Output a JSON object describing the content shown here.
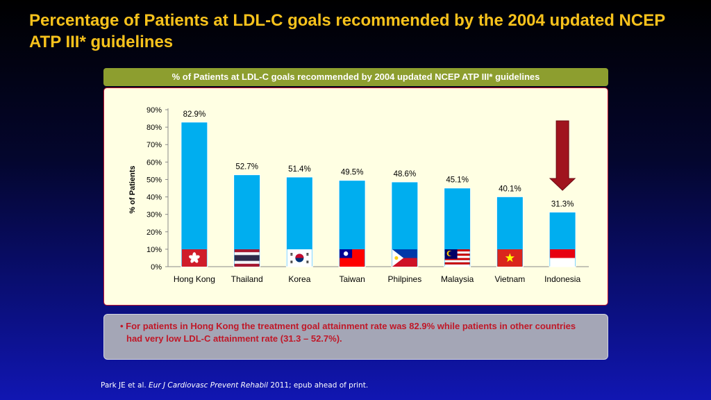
{
  "slide": {
    "title": "Percentage of Patients at LDL-C goals recommended by the 2004 updated NCEP ATP III* guidelines"
  },
  "chart_data": {
    "type": "bar",
    "title": "% of Patients at LDL-C goals recommended by 2004 updated NCEP ATP III* guidelines",
    "ylabel": "% of Patients",
    "xlabel": "",
    "ylim": [
      0,
      90
    ],
    "yticks": [
      0,
      10,
      20,
      30,
      40,
      50,
      60,
      70,
      80,
      90
    ],
    "ytick_labels": [
      "0%",
      "10%",
      "20%",
      "30%",
      "40%",
      "50%",
      "60%",
      "70%",
      "80%",
      "90%"
    ],
    "categories": [
      "Hong Kong",
      "Thailand",
      "Korea",
      "Taiwan",
      "Philpines",
      "Malaysia",
      "Vietnam",
      "Indonesia"
    ],
    "values": [
      82.9,
      52.7,
      51.4,
      49.5,
      48.6,
      45.1,
      40.1,
      31.3
    ],
    "data_labels": [
      "82.9%",
      "52.7%",
      "51.4%",
      "49.5%",
      "48.6%",
      "45.1%",
      "40.1%",
      "31.3%"
    ],
    "bar_color": "#00aeef",
    "grid": false,
    "legend": "none",
    "annotation": "down-arrow-over-indonesia"
  },
  "note": {
    "text": "For patients in Hong Kong the treatment goal attainment rate was 82.9% while patients in other countries had very low LDL-C attainment rate (31.3 – 52.7%)."
  },
  "citation": {
    "authors": "Park JE et al.",
    "journal": "Eur J Cardiovasc Prevent Rehabil",
    "details": "2011; epub ahead of print."
  },
  "colors": {
    "title": "#f7c21c",
    "header_bg": "#8d9e2f",
    "panel_bg": "#ffffe3",
    "arrow": "#a0141e",
    "note_text": "#c01828"
  }
}
